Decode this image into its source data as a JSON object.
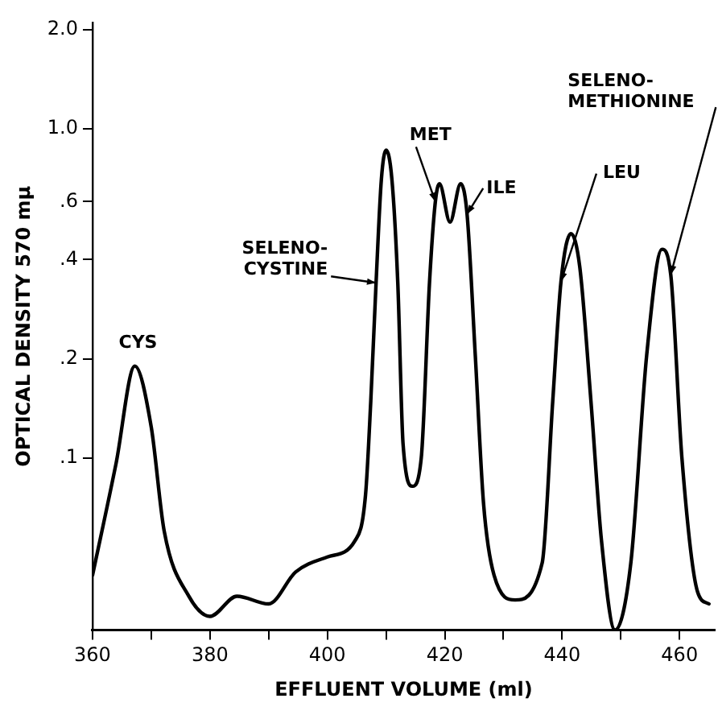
{
  "chart_data": {
    "type": "line",
    "xlabel": "EFFLUENT VOLUME (ml)",
    "ylabel": "OPTICAL DENSITY 570 mμ",
    "color": "#000000",
    "marker": "none",
    "line_style": "solid",
    "grid": false,
    "legend": false,
    "x": [
      360,
      364,
      367.2,
      370,
      372.2,
      376.4,
      380,
      384.6,
      390,
      394.6,
      400,
      404.7,
      406.5,
      407.4,
      408.3,
      409.2,
      410,
      411,
      412,
      412.9,
      414.5,
      416,
      417.4,
      418.4,
      419.1,
      420.9,
      422.7,
      423.8,
      425.2,
      426.6,
      428.4,
      432,
      436.6,
      438.4,
      439.8,
      441.5,
      443,
      444.9,
      446.7,
      449,
      451.7,
      454.4,
      457,
      458.5,
      460.4,
      463.1,
      465
    ],
    "values": [
      0.044,
      0.096,
      0.19,
      0.124,
      0.06,
      0.038,
      0.033,
      0.038,
      0.036,
      0.045,
      0.05,
      0.056,
      0.077,
      0.149,
      0.34,
      0.7,
      0.86,
      0.7,
      0.34,
      0.11,
      0.082,
      0.1,
      0.34,
      0.6,
      0.68,
      0.52,
      0.68,
      0.55,
      0.205,
      0.073,
      0.044,
      0.037,
      0.048,
      0.149,
      0.343,
      0.48,
      0.38,
      0.149,
      0.056,
      0.03,
      0.048,
      0.205,
      0.43,
      0.36,
      0.1,
      0.039,
      0.036
    ],
    "xlim": [
      360,
      466
    ],
    "xticks": [
      360,
      {
        "value": 370,
        "label": null
      },
      380,
      {
        "value": 390,
        "label": null
      },
      400,
      {
        "value": 410,
        "label": null
      },
      420,
      {
        "value": 430,
        "label": null
      },
      440,
      {
        "value": 450,
        "label": null
      },
      460
    ],
    "ylim": [
      0.03,
      2.1
    ],
    "log": "y",
    "yticks": [
      {
        "value": 0.1,
        "label": ".1"
      },
      {
        "value": 0.2,
        "label": ".2"
      },
      {
        "value": 0.4,
        "label": ".4"
      },
      {
        "value": 0.6,
        "label": ".6"
      },
      {
        "value": 1,
        "label": "1.0"
      },
      {
        "value": 2,
        "label": "2.0"
      }
    ],
    "annotations": [
      {
        "text": "CYS",
        "x": 367.2,
        "y": 0.19
      },
      {
        "text": "SELENO-\nCYSTINE",
        "x": 408.3,
        "y": 0.34
      },
      {
        "text": "MET",
        "x": 418.4,
        "y": 0.6
      },
      {
        "text": "ILE",
        "x": 423.8,
        "y": 0.55
      },
      {
        "text": "LEU",
        "x": 439.8,
        "y": 0.343
      },
      {
        "text": "SELENO-\nMETHIONINE",
        "x": 458.5,
        "y": 0.36
      }
    ]
  }
}
